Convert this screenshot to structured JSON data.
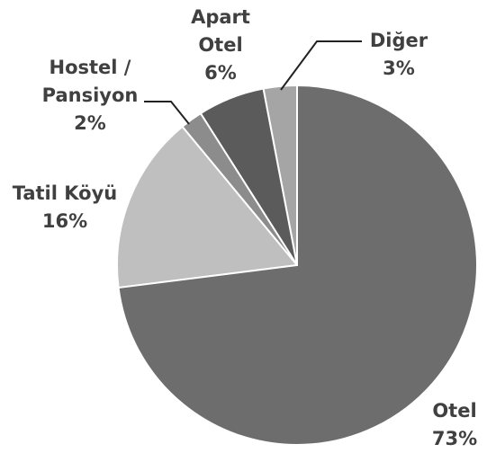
{
  "chart_data": {
    "type": "pie",
    "categories": [
      "Otel",
      "Tatil Köyü",
      "Hostel / Pansiyon",
      "Apart Otel",
      "Diğer"
    ],
    "values": [
      73,
      16,
      2,
      6,
      3
    ],
    "value_labels": [
      "73%",
      "16%",
      "2%",
      "6%",
      "3%"
    ],
    "colors": [
      "#6d6d6d",
      "#bfbfbf",
      "#8c8c8c",
      "#5b5b5b",
      "#a5a5a5"
    ]
  }
}
